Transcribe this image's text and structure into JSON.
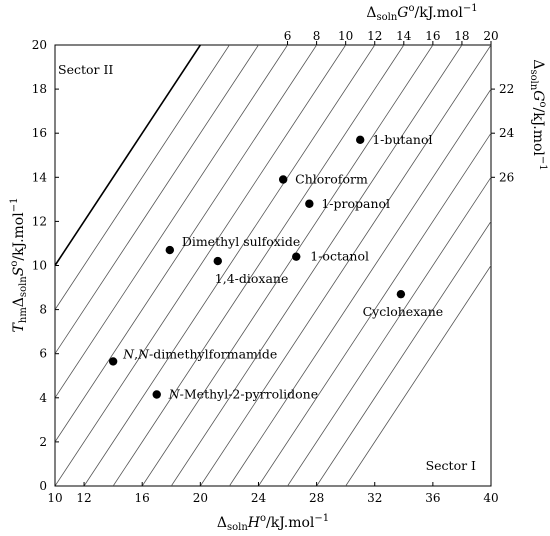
{
  "chart_data": {
    "type": "scatter",
    "xlabel": "Δ_soln H^o/kJ.mol^-1",
    "ylabel": "T_hm Δ_soln S^o/kJ.mol^-1",
    "top_label": "Δ_soln G^o/kJ.mol^-1",
    "right_label": "Δ_soln G^o/kJ.mol^-1",
    "xlim": [
      10,
      40
    ],
    "ylim": [
      0,
      20
    ],
    "xticks": [
      10,
      12,
      16,
      20,
      24,
      28,
      32,
      36,
      40
    ],
    "yticks": [
      0,
      2,
      4,
      6,
      8,
      10,
      12,
      14,
      16,
      18,
      20
    ],
    "g_ticks_top": [
      6,
      8,
      10,
      12,
      14,
      16,
      18,
      20
    ],
    "g_ticks_right": [
      22,
      24,
      26
    ],
    "iso_g_lines": [
      2,
      4,
      6,
      8,
      10,
      12,
      14,
      16,
      18,
      20,
      22,
      24,
      26,
      28,
      30
    ],
    "sector_boundary": {
      "x": [
        10,
        20
      ],
      "y": [
        10,
        20
      ]
    },
    "sector_labels": [
      "Sector II",
      "Sector I"
    ],
    "points": [
      {
        "label": "1-butanol",
        "x": 31.0,
        "y": 15.7
      },
      {
        "label": "Chloroform",
        "x": 25.7,
        "y": 13.9
      },
      {
        "label": "1-propanol",
        "x": 27.5,
        "y": 12.8
      },
      {
        "label": "Dimethyl sulfoxide",
        "x": 17.9,
        "y": 10.7
      },
      {
        "label": "1,4-dioxane",
        "x": 21.2,
        "y": 10.2
      },
      {
        "label": "1-octanol",
        "x": 26.6,
        "y": 10.4
      },
      {
        "label": "Cyclohexane",
        "x": 33.8,
        "y": 8.7
      },
      {
        "label": "N,N-dimethylformamide",
        "x": 14.0,
        "y": 5.65
      },
      {
        "label": "N-Methyl-2-pyrrolidone",
        "x": 17.0,
        "y": 4.15
      }
    ]
  }
}
